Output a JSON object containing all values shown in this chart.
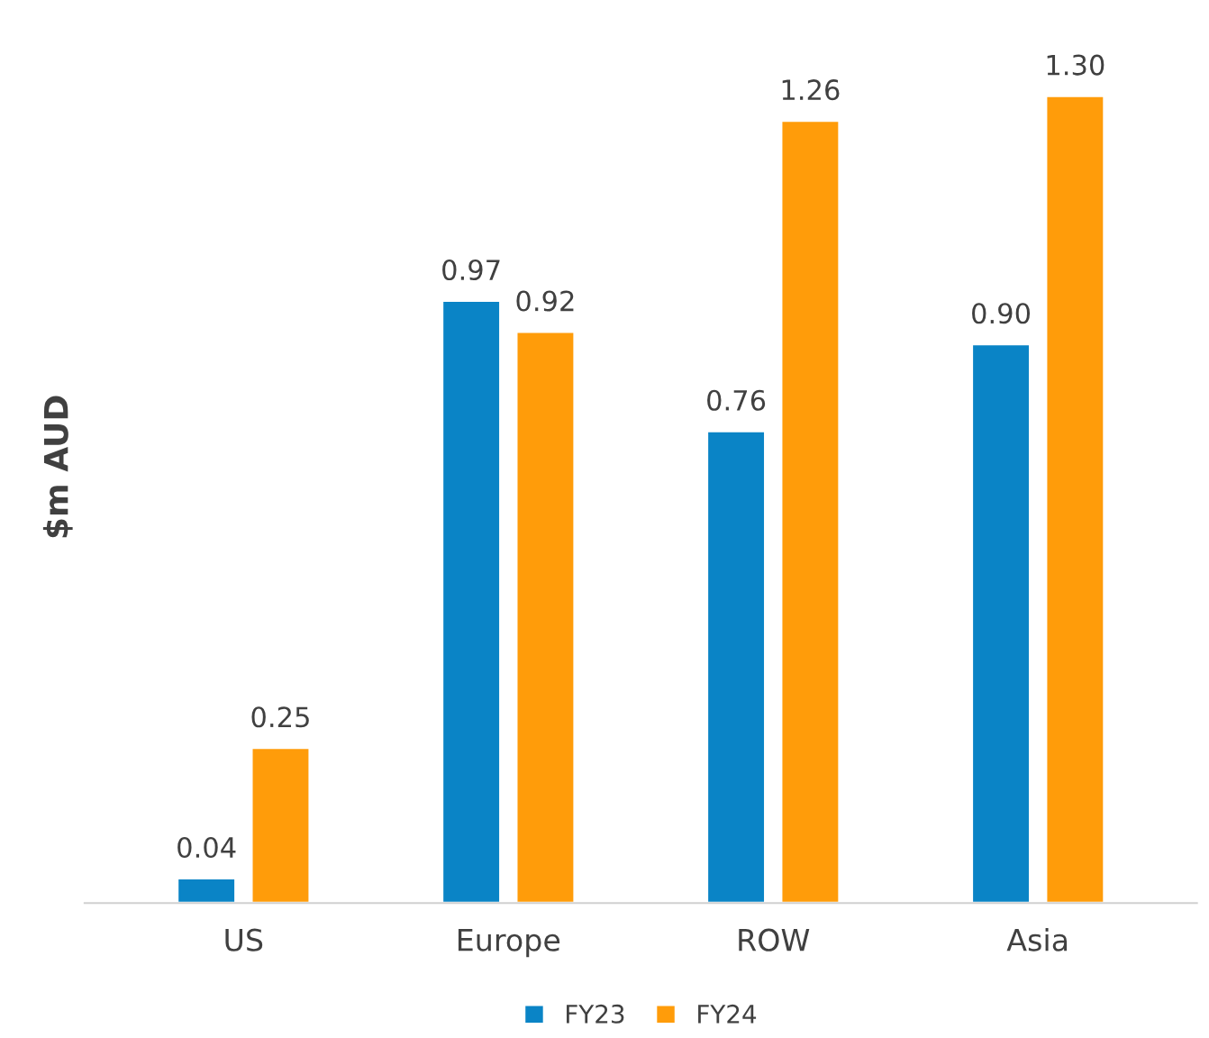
{
  "chart_data": {
    "type": "bar",
    "ylabel": "$m AUD",
    "categories": [
      "US",
      "Europe",
      "ROW",
      "Asia"
    ],
    "series": [
      {
        "name": "FY23",
        "color": "#0a84c6",
        "values": [
          0.04,
          0.97,
          0.76,
          0.9
        ],
        "value_labels": [
          "0.04",
          "0.97",
          "0.76",
          "0.90"
        ]
      },
      {
        "name": "FY24",
        "color": "#ff9c0a",
        "values": [
          0.25,
          0.92,
          1.26,
          1.3
        ],
        "value_labels": [
          "0.25",
          "0.92",
          "1.26",
          "1.30"
        ]
      }
    ],
    "tick_labels": "x",
    "legend": "bottom",
    "grid": false
  }
}
